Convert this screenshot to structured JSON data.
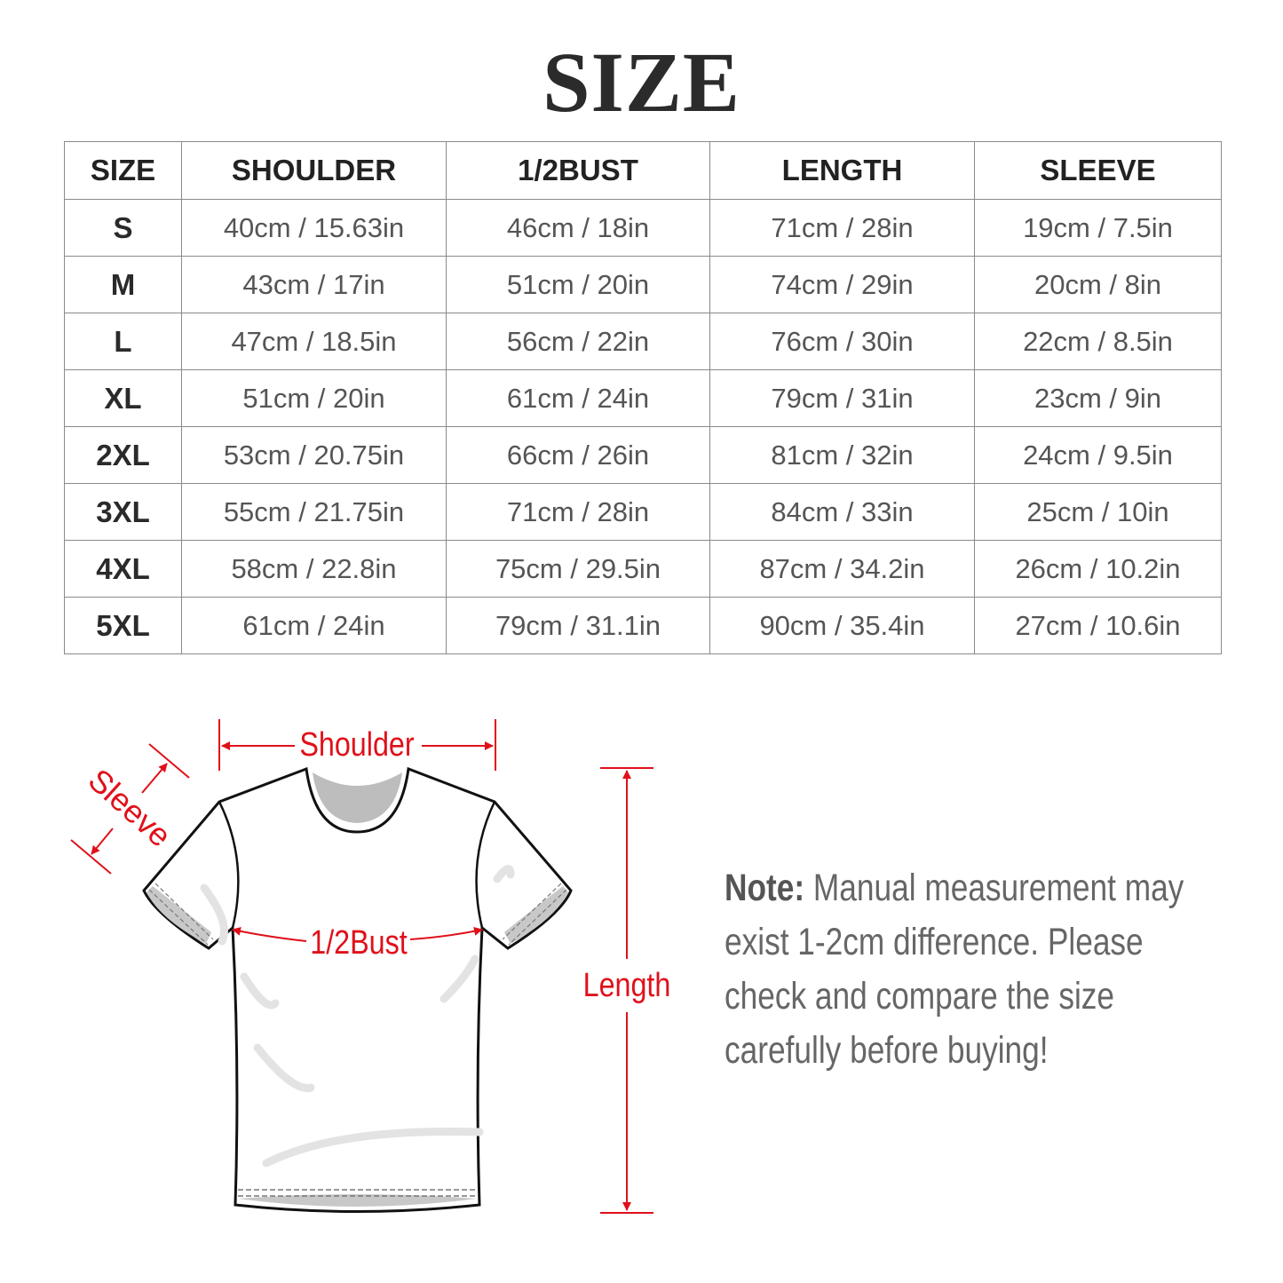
{
  "title": "SIZE",
  "table": {
    "headers": [
      "SIZE",
      "SHOULDER",
      "1/2BUST",
      "LENGTH",
      "SLEEVE"
    ],
    "rows": [
      [
        "S",
        "40cm / 15.63in",
        "46cm / 18in",
        "71cm / 28in",
        "19cm / 7.5in"
      ],
      [
        "M",
        "43cm / 17in",
        "51cm / 20in",
        "74cm / 29in",
        "20cm / 8in"
      ],
      [
        "L",
        "47cm / 18.5in",
        "56cm / 22in",
        "76cm / 30in",
        "22cm / 8.5in"
      ],
      [
        "XL",
        "51cm / 20in",
        "61cm / 24in",
        "79cm / 31in",
        "23cm / 9in"
      ],
      [
        "2XL",
        "53cm / 20.75in",
        "66cm / 26in",
        "81cm / 32in",
        "24cm / 9.5in"
      ],
      [
        "3XL",
        "55cm / 21.75in",
        "71cm / 28in",
        "84cm / 33in",
        "25cm / 10in"
      ],
      [
        "4XL",
        "58cm / 22.8in",
        "75cm / 29.5in",
        "87cm / 34.2in",
        "26cm / 10.2in"
      ],
      [
        "5XL",
        "61cm / 24in",
        "79cm / 31.1in",
        "90cm / 35.4in",
        "27cm / 10.6in"
      ]
    ]
  },
  "diagram": {
    "shoulder_label": "Shoulder",
    "sleeve_label": "Sleeve",
    "bust_label": "1/2Bust",
    "length_label": "Length",
    "annotation_color": "#e0101a"
  },
  "note": {
    "label": "Note:",
    "text": " Manual measurement may exist 1-2cm difference. Please check and compare the size carefully before buying!"
  }
}
